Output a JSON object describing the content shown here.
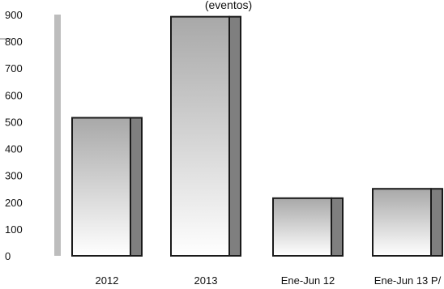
{
  "chart_data": {
    "type": "bar",
    "title_fragment": "(eventos)",
    "categories": [
      "2012",
      "2013",
      "Ene-Jun 12",
      "Ene-Jun 13 P/"
    ],
    "values": [
      515,
      892,
      215,
      250
    ],
    "yticks": [
      0,
      100,
      200,
      300,
      400,
      500,
      600,
      700,
      800,
      900
    ],
    "ylim": [
      0,
      900
    ],
    "grid": false,
    "colors": {
      "bar_top": "#a8a8a8",
      "bar_bottom": "#ffffff",
      "bar_side": "#7f7f7f",
      "bar_border": "#1a1a1a",
      "wall": "#bdbdbd"
    }
  }
}
